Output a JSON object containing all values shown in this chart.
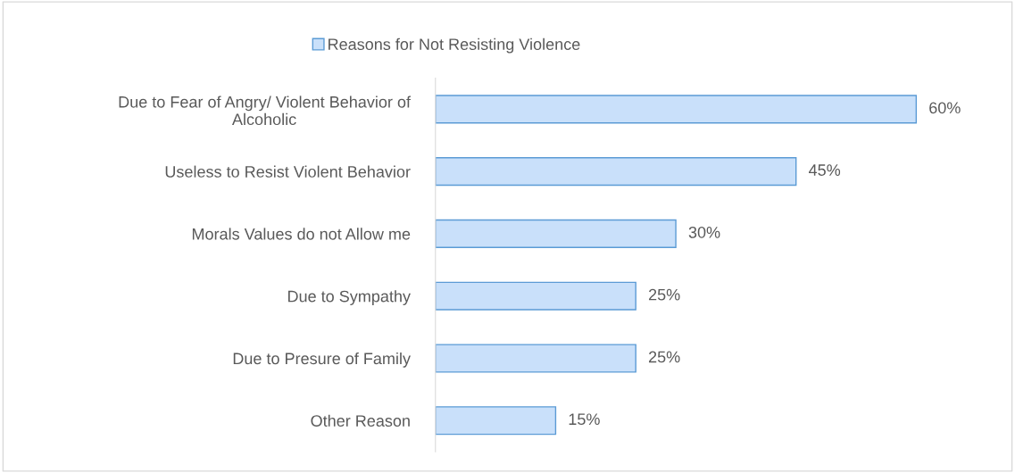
{
  "chart_data": {
    "type": "bar",
    "orientation": "horizontal",
    "categories": [
      "Due to Fear of Angry/ Violent Behavior of Alcoholic",
      "Useless to Resist Violent Behavior",
      "Morals Values do not Allow me",
      "Due to Sympathy",
      "Due to Presure of Family",
      "Other Reason"
    ],
    "series": [
      {
        "name": "Reasons for Not Resisting Violence",
        "color": "#c9e0fa",
        "values": [
          60,
          45,
          30,
          25,
          25,
          15
        ],
        "value_labels": [
          "60%",
          "45%",
          "30%",
          "25%",
          "25%",
          "15%"
        ]
      }
    ],
    "legend": "top",
    "grid": false
  }
}
